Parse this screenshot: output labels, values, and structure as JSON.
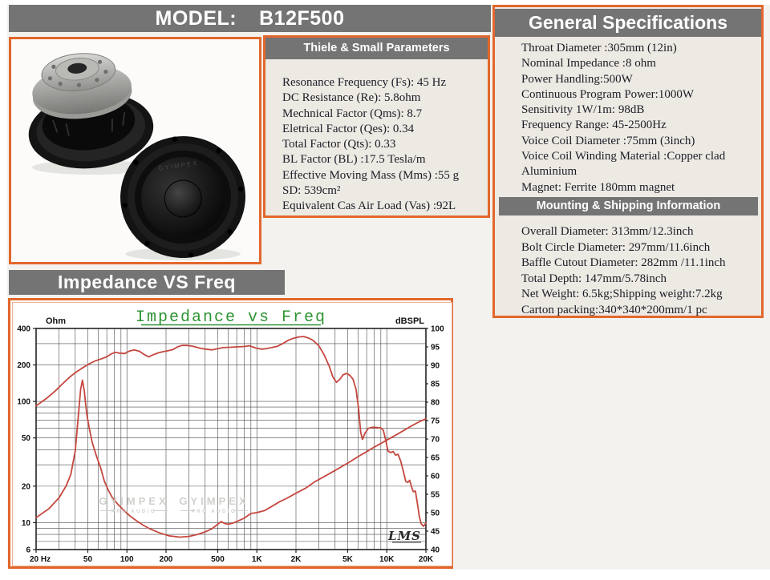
{
  "header": {
    "model_label": "MODEL:",
    "model_value": "B12F500"
  },
  "panels": {
    "thiele": {
      "title": "Thiele & Small Parameters",
      "lines": [
        "Resonance Frequency (Fs): 45 Hz",
        "DC Resistance (Re): 5.8ohm",
        "Mechnical Factor (Qms): 8.7",
        "Eletrical Factor (Qes): 0.34",
        "Total Factor (Qts): 0.33",
        "BL Factor (BL) :17.5 Tesla/m",
        "Effective Moving Mass (Mms) :55 g",
        "SD: 539cm²",
        "Equivalent Cas Air Load (Vas) :92L"
      ]
    },
    "general": {
      "title": "General Specifications",
      "lines": [
        "Throat Diameter :305mm (12in)",
        "Nominal Impedance :8 ohm",
        "Power Handling:500W",
        "Continuous Program Power:1000W",
        "Sensitivity 1W/1m: 98dB",
        "Frequency Range: 45-2500Hz",
        "Voice Coil Diameter :75mm (3inch)",
        "Voice Coil Winding Material :Copper clad Aluminium",
        "Magnet: Ferrite 180mm magnet"
      ]
    },
    "mounting": {
      "title": "Mounting & Shipping Information",
      "lines": [
        "Overall Diameter: 313mm/12.3inch",
        "Bolt Circle Diameter: 297mm/11.6inch",
        "Baffle Cutout Diameter: 282mm /11.1inch",
        "Total Depth: 147mm/5.78inch",
        "Net Weight: 6.5kg;Shipping weight:7.2kg",
        "Carton packing:340*340*200mm/1 pc"
      ]
    },
    "impedance_header": "Impedance VS Freq"
  },
  "product": {
    "cone_watermark": "GYIMPEX"
  },
  "chart_data": {
    "type": "line",
    "title": "Impedance vs Freq",
    "title_color": "#2e9433",
    "curve_color": "#c5473f",
    "grid_color": "#4a4a4a",
    "watermark_text": "GYIMPEX",
    "watermark_subtext": "PRO AUDIO",
    "logo": "LMS",
    "x_axis": {
      "scale": "log",
      "min": 20,
      "max": 20000,
      "tick_values": [
        20,
        50,
        100,
        200,
        500,
        1000,
        2000,
        5000,
        10000,
        20000
      ],
      "tick_labels": [
        "20 Hz",
        "50",
        "100",
        "200",
        "500",
        "1K",
        "2K",
        "5K",
        "10K",
        "20K"
      ]
    },
    "left_axis": {
      "label": "Ohm",
      "scale": "log",
      "min": 6,
      "max": 400,
      "ticks": [
        400,
        200,
        100,
        50,
        20,
        10,
        6
      ]
    },
    "right_axis": {
      "label": "dBSPL",
      "scale": "linear",
      "min": 40,
      "max": 100,
      "tick_step": 5
    },
    "series": [
      {
        "name": "Impedance (Ohm)",
        "axis": "left",
        "points": [
          [
            20,
            11
          ],
          [
            25,
            13
          ],
          [
            30,
            16
          ],
          [
            34,
            20
          ],
          [
            37,
            25
          ],
          [
            40,
            39
          ],
          [
            42,
            70
          ],
          [
            44,
            125
          ],
          [
            45.5,
            150
          ],
          [
            47,
            122
          ],
          [
            49,
            80
          ],
          [
            51,
            62
          ],
          [
            54,
            46
          ],
          [
            58,
            36
          ],
          [
            63,
            28
          ],
          [
            67,
            22
          ],
          [
            72,
            18.5
          ],
          [
            77,
            16.2
          ],
          [
            85,
            14.2
          ],
          [
            95,
            12.6
          ],
          [
            105,
            11.4
          ],
          [
            118,
            10.4
          ],
          [
            132,
            9.6
          ],
          [
            150,
            8.9
          ],
          [
            175,
            8.3
          ],
          [
            210,
            7.8
          ],
          [
            255,
            7.6
          ],
          [
            300,
            7.7
          ],
          [
            350,
            8.0
          ],
          [
            400,
            8.4
          ],
          [
            450,
            8.9
          ],
          [
            500,
            9.7
          ],
          [
            530,
            10.2
          ],
          [
            560,
            9.9
          ],
          [
            600,
            9.7
          ],
          [
            650,
            9.9
          ],
          [
            700,
            10.2
          ],
          [
            800,
            10.9
          ],
          [
            900,
            11.9
          ],
          [
            1000,
            12.1
          ],
          [
            1150,
            12.6
          ],
          [
            1300,
            13.6
          ],
          [
            1500,
            14.9
          ],
          [
            1700,
            15.9
          ],
          [
            2000,
            17.5
          ],
          [
            2400,
            19.4
          ],
          [
            2800,
            21.8
          ],
          [
            3300,
            24
          ],
          [
            4000,
            27
          ],
          [
            5000,
            31
          ],
          [
            6000,
            35
          ],
          [
            7000,
            38.5
          ],
          [
            8000,
            42
          ],
          [
            9000,
            45
          ],
          [
            10000,
            48
          ],
          [
            12000,
            53.5
          ],
          [
            14000,
            59
          ],
          [
            16000,
            64
          ],
          [
            18000,
            68.5
          ],
          [
            20000,
            72
          ]
        ]
      },
      {
        "name": "SPL (dBSPL)",
        "axis": "right",
        "points": [
          [
            20,
            79
          ],
          [
            24,
            81
          ],
          [
            28,
            83
          ],
          [
            32,
            85
          ],
          [
            36,
            86.7
          ],
          [
            40,
            88
          ],
          [
            45,
            89.2
          ],
          [
            50,
            90.2
          ],
          [
            57,
            91.2
          ],
          [
            63,
            91.7
          ],
          [
            70,
            92.3
          ],
          [
            76,
            93.1
          ],
          [
            81,
            93.5
          ],
          [
            88,
            93.3
          ],
          [
            96,
            93.2
          ],
          [
            105,
            93.9
          ],
          [
            114,
            94.2
          ],
          [
            125,
            93.8
          ],
          [
            135,
            93.0
          ],
          [
            147,
            92.3
          ],
          [
            160,
            92.9
          ],
          [
            175,
            93.4
          ],
          [
            190,
            93.7
          ],
          [
            210,
            94.0
          ],
          [
            227,
            94.3
          ],
          [
            245,
            95.0
          ],
          [
            265,
            95.4
          ],
          [
            290,
            95.4
          ],
          [
            320,
            95.2
          ],
          [
            360,
            94.7
          ],
          [
            400,
            94.4
          ],
          [
            450,
            94.2
          ],
          [
            500,
            94.5
          ],
          [
            550,
            94.8
          ],
          [
            620,
            94.9
          ],
          [
            700,
            95.0
          ],
          [
            800,
            95.1
          ],
          [
            880,
            95.3
          ],
          [
            980,
            94.7
          ],
          [
            1080,
            94.4
          ],
          [
            1170,
            94.5
          ],
          [
            1300,
            94.8
          ],
          [
            1450,
            95.2
          ],
          [
            1600,
            96.0
          ],
          [
            1750,
            96.8
          ],
          [
            1900,
            97.3
          ],
          [
            2100,
            97.7
          ],
          [
            2300,
            97.8
          ],
          [
            2500,
            97.4
          ],
          [
            2700,
            96.8
          ],
          [
            3000,
            95.3
          ],
          [
            3300,
            92.8
          ],
          [
            3600,
            89.8
          ],
          [
            3850,
            86.8
          ],
          [
            4100,
            85.4
          ],
          [
            4350,
            86.2
          ],
          [
            4600,
            87.4
          ],
          [
            4900,
            87.8
          ],
          [
            5200,
            87.3
          ],
          [
            5500,
            86.2
          ],
          [
            5800,
            83.5
          ],
          [
            6050,
            78.5
          ],
          [
            6300,
            71.8
          ],
          [
            6500,
            69.9
          ],
          [
            6800,
            71.6
          ],
          [
            7200,
            72.9
          ],
          [
            7800,
            73.2
          ],
          [
            8400,
            73.1
          ],
          [
            9000,
            73.0
          ],
          [
            9400,
            72.4
          ],
          [
            9800,
            69.8
          ],
          [
            10200,
            66.8
          ],
          [
            10700,
            66.3
          ],
          [
            11200,
            66.6
          ],
          [
            11700,
            65.6
          ],
          [
            12200,
            65.9
          ],
          [
            12800,
            64.0
          ],
          [
            13400,
            61.3
          ],
          [
            14000,
            58.5
          ],
          [
            14500,
            58.2
          ],
          [
            15000,
            58.8
          ],
          [
            15500,
            57.0
          ],
          [
            16000,
            55.7
          ],
          [
            16600,
            55.9
          ],
          [
            17200,
            52.5
          ],
          [
            17800,
            49.0
          ],
          [
            18400,
            47.0
          ],
          [
            19200,
            46.3
          ],
          [
            20000,
            47.2
          ]
        ]
      }
    ]
  }
}
